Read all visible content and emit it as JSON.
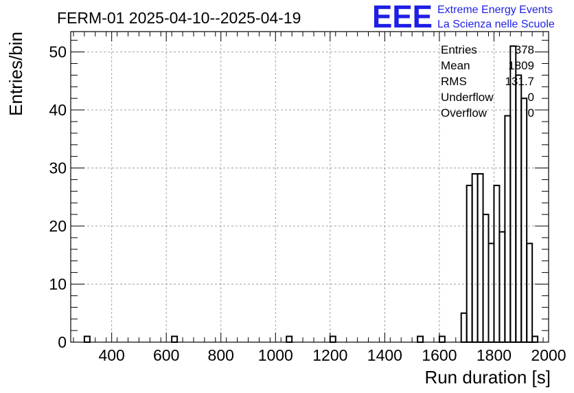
{
  "chart_data": {
    "type": "bar",
    "title": "FERM-01 2025-04-10--2025-04-19",
    "xlabel": "Run duration [s]",
    "ylabel": "Entries/bin",
    "xlim": [
      250,
      2000
    ],
    "ylim": [
      0,
      53.5
    ],
    "bin_width": 20,
    "grid": true,
    "x_ticks": [
      400,
      600,
      800,
      1000,
      1200,
      1400,
      1600,
      1800,
      2000
    ],
    "y_ticks": [
      0,
      10,
      20,
      30,
      40,
      50
    ],
    "bins": [
      {
        "x": 310,
        "value": 1
      },
      {
        "x": 630,
        "value": 1
      },
      {
        "x": 1050,
        "value": 1
      },
      {
        "x": 1210,
        "value": 1
      },
      {
        "x": 1530,
        "value": 1
      },
      {
        "x": 1610,
        "value": 1
      },
      {
        "x": 1690,
        "value": 5
      },
      {
        "x": 1710,
        "value": 27
      },
      {
        "x": 1730,
        "value": 29
      },
      {
        "x": 1750,
        "value": 29
      },
      {
        "x": 1770,
        "value": 22
      },
      {
        "x": 1790,
        "value": 17
      },
      {
        "x": 1810,
        "value": 27
      },
      {
        "x": 1830,
        "value": 19
      },
      {
        "x": 1850,
        "value": 39
      },
      {
        "x": 1870,
        "value": 51
      },
      {
        "x": 1890,
        "value": 46
      },
      {
        "x": 1910,
        "value": 42
      },
      {
        "x": 1930,
        "value": 17
      },
      {
        "x": 1950,
        "value": 1
      }
    ],
    "stats": [
      {
        "label": "Entries",
        "value": "378"
      },
      {
        "label": "Mean",
        "value": "1809"
      },
      {
        "label": "RMS",
        "value": "131.7"
      },
      {
        "label": "Underflow",
        "value": "0"
      },
      {
        "label": "Overflow",
        "value": "0"
      }
    ],
    "stats_placement": "top-right",
    "colors": {
      "line": "#000000",
      "grid": "#a0a0a0",
      "logo": "#1f1fe6"
    }
  },
  "logo": {
    "mark": "EEE",
    "line1": "Extreme Energy Events",
    "line2": "La Scienza nelle Scuole"
  }
}
